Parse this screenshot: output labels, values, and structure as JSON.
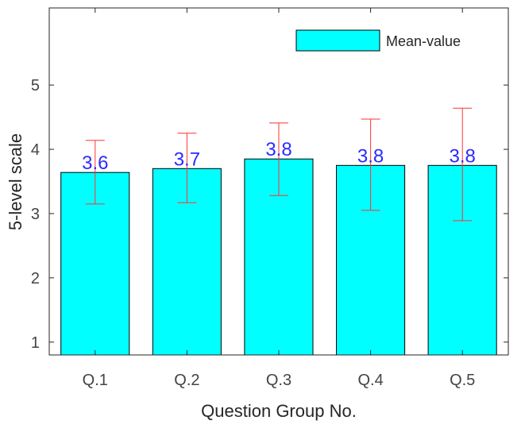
{
  "chart_data": {
    "type": "bar",
    "xlabel": "Question Group No.",
    "ylabel": "5-level scale",
    "categories": [
      "Q.1",
      "Q.2",
      "Q.3",
      "Q.4",
      "Q.5"
    ],
    "series": [
      {
        "name": "Mean-value",
        "values": [
          3.64,
          3.7,
          3.85,
          3.75,
          3.75
        ],
        "data_labels": [
          "3.6",
          "3.7",
          "3.8",
          "3.8",
          "3.8"
        ],
        "error_low": [
          3.15,
          3.17,
          3.28,
          3.05,
          2.89
        ],
        "error_high": [
          4.14,
          4.25,
          4.41,
          4.47,
          4.64
        ]
      }
    ],
    "ylim": [
      0.8,
      6.2
    ],
    "yticks": [
      1,
      2,
      3,
      4,
      5
    ],
    "grid": false,
    "legend_position": "top-right",
    "colors": {
      "bar": "#00ffff",
      "bar_edge": "#000000",
      "error_bar": "#ff3333",
      "data_label": "#2b2bff",
      "axis": "#262626"
    }
  }
}
